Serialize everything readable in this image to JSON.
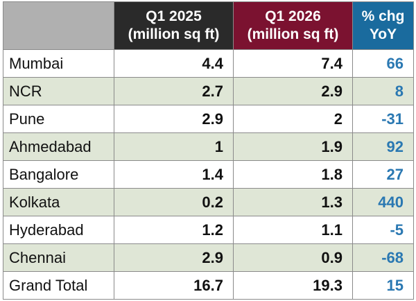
{
  "chart_data": {
    "type": "table",
    "colors": {
      "header_corner": "#b0b0b0",
      "header_q1_2025": "#2a2a2a",
      "header_q1_2026": "#7b1230",
      "header_chg": "#1a6b9e",
      "row_alt": "#dfe6d6",
      "chg_text": "#2a78b2"
    },
    "columns": [
      {
        "key": "city",
        "label": ""
      },
      {
        "key": "q1_2025",
        "label_line1": "Q1 2025",
        "label_line2": "(million sq ft)"
      },
      {
        "key": "q1_2026",
        "label_line1": "Q1 2026",
        "label_line2": "(million sq ft)"
      },
      {
        "key": "chg",
        "label_line1": "% chg",
        "label_line2": "YoY"
      }
    ],
    "rows": [
      {
        "city": "Mumbai",
        "q1_2025": "4.4",
        "q1_2026": "7.4",
        "chg": "66"
      },
      {
        "city": "NCR",
        "q1_2025": "2.7",
        "q1_2026": "2.9",
        "chg": "8"
      },
      {
        "city": "Pune",
        "q1_2025": "2.9",
        "q1_2026": "2",
        "chg": "-31"
      },
      {
        "city": "Ahmedabad",
        "q1_2025": "1",
        "q1_2026": "1.9",
        "chg": "92"
      },
      {
        "city": "Bangalore",
        "q1_2025": "1.4",
        "q1_2026": "1.8",
        "chg": "27"
      },
      {
        "city": "Kolkata",
        "q1_2025": "0.2",
        "q1_2026": "1.3",
        "chg": "440"
      },
      {
        "city": "Hyderabad",
        "q1_2025": "1.2",
        "q1_2026": "1.1",
        "chg": "-5"
      },
      {
        "city": "Chennai",
        "q1_2025": "2.9",
        "q1_2026": "0.9",
        "chg": "-68"
      },
      {
        "city": "Grand Total",
        "q1_2025": "16.7",
        "q1_2026": "19.3",
        "chg": "15"
      }
    ]
  }
}
